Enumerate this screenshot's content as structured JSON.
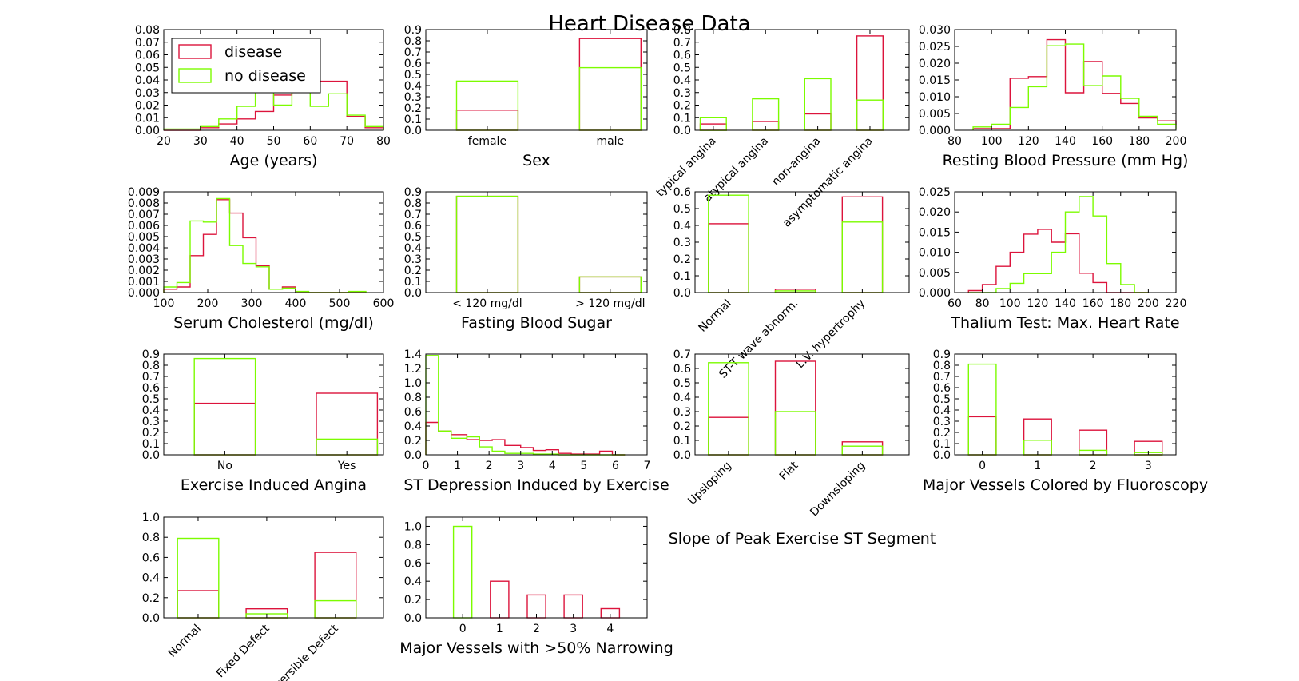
{
  "title": "Heart Disease Data",
  "colors": {
    "disease": "#dc143c",
    "no_disease": "#7cfc00"
  },
  "legend": {
    "entries": [
      "disease",
      "no disease"
    ],
    "placement": "upper-left of first panel"
  },
  "chart_data": [
    {
      "id": "age",
      "type": "histogram",
      "xlabel": "Age (years)",
      "xlim": [
        20,
        80
      ],
      "ylim": [
        0,
        0.08
      ],
      "xticks": [
        "20",
        "30",
        "40",
        "50",
        "60",
        "70",
        "80"
      ],
      "yticks": [
        "0.00",
        "0.01",
        "0.02",
        "0.03",
        "0.04",
        "0.05",
        "0.06",
        "0.07",
        "0.08"
      ],
      "bin_edges": [
        20,
        25,
        30,
        35,
        40,
        45,
        50,
        55,
        60,
        65,
        70,
        75,
        80
      ],
      "series": [
        {
          "name": "disease",
          "values": [
            0,
            0,
            0.002,
            0.005,
            0.009,
            0.015,
            0.028,
            0.03,
            0.039,
            0.039,
            0.011,
            0.002
          ]
        },
        {
          "name": "no disease",
          "values": [
            0.001,
            0.001,
            0.003,
            0.009,
            0.019,
            0.031,
            0.02,
            0.034,
            0.019,
            0.029,
            0.012,
            0.003
          ]
        }
      ]
    },
    {
      "id": "sex",
      "type": "bar",
      "xlabel": "Sex",
      "ylim": [
        0,
        0.9
      ],
      "categories": [
        "female",
        "male"
      ],
      "yticks": [
        "0.0",
        "0.1",
        "0.2",
        "0.3",
        "0.4",
        "0.5",
        "0.6",
        "0.7",
        "0.8",
        "0.9"
      ],
      "series": [
        {
          "name": "disease",
          "values": [
            0.18,
            0.82
          ]
        },
        {
          "name": "no disease",
          "values": [
            0.44,
            0.56
          ]
        }
      ]
    },
    {
      "id": "chest_pain",
      "type": "bar",
      "xlabel": "",
      "ylim": [
        0,
        0.8
      ],
      "categories": [
        "typical angina",
        "atypical angina",
        "non-angina",
        "asymptomatic angina"
      ],
      "yticks": [
        "0.0",
        "0.1",
        "0.2",
        "0.3",
        "0.4",
        "0.5",
        "0.6",
        "0.7",
        "0.8"
      ],
      "series": [
        {
          "name": "disease",
          "values": [
            0.05,
            0.07,
            0.13,
            0.75
          ]
        },
        {
          "name": "no disease",
          "values": [
            0.1,
            0.25,
            0.41,
            0.24
          ]
        }
      ]
    },
    {
      "id": "bp",
      "type": "histogram",
      "xlabel": "Resting Blood Pressure (mm Hg)",
      "xlim": [
        80,
        200
      ],
      "ylim": [
        0,
        0.03
      ],
      "xticks": [
        "80",
        "100",
        "120",
        "140",
        "160",
        "180",
        "200"
      ],
      "yticks": [
        "0.000",
        "0.005",
        "0.010",
        "0.015",
        "0.020",
        "0.025",
        "0.030"
      ],
      "bin_edges": [
        90,
        100,
        110,
        120,
        130,
        140,
        150,
        160,
        170,
        180,
        190,
        200
      ],
      "series": [
        {
          "name": "disease",
          "values": [
            0.0005,
            0.0005,
            0.0155,
            0.016,
            0.027,
            0.0112,
            0.0205,
            0.011,
            0.008,
            0.0037,
            0.0028,
            0.0017
          ]
        },
        {
          "name": "no disease",
          "values": [
            0.001,
            0.0018,
            0.0068,
            0.013,
            0.0252,
            0.0257,
            0.0133,
            0.0162,
            0.0095,
            0.0042,
            0.0018,
            0.0005
          ]
        }
      ]
    },
    {
      "id": "chol",
      "type": "histogram",
      "xlabel": "Serum Cholesterol (mg/dl)",
      "xlim": [
        100,
        600
      ],
      "ylim": [
        0,
        0.009
      ],
      "xticks": [
        "100",
        "200",
        "300",
        "400",
        "500",
        "600"
      ],
      "yticks": [
        "0.000",
        "0.001",
        "0.002",
        "0.003",
        "0.004",
        "0.005",
        "0.006",
        "0.007",
        "0.008",
        "0.009"
      ],
      "bin_edges": [
        100,
        130,
        160,
        190,
        220,
        250,
        280,
        310,
        340,
        370,
        400,
        430,
        460,
        490,
        520,
        560
      ],
      "series": [
        {
          "name": "disease",
          "values": [
            0.0003,
            0.0005,
            0.0033,
            0.0052,
            0.0083,
            0.0071,
            0.0049,
            0.0024,
            0.0003,
            0.0005,
            0,
            0,
            0,
            0,
            0
          ]
        },
        {
          "name": "no disease",
          "values": [
            0.0005,
            0.0009,
            0.0064,
            0.0063,
            0.0084,
            0.0042,
            0.0026,
            0.0023,
            0.0003,
            0.0004,
            0.0001,
            0,
            0,
            0,
            0.0001
          ]
        }
      ]
    },
    {
      "id": "fbs",
      "type": "bar",
      "xlabel": "Fasting Blood Sugar",
      "ylim": [
        0,
        0.9
      ],
      "categories": [
        "< 120 mg/dl",
        "> 120 mg/dl"
      ],
      "yticks": [
        "0.0",
        "0.1",
        "0.2",
        "0.3",
        "0.4",
        "0.5",
        "0.6",
        "0.7",
        "0.8",
        "0.9"
      ],
      "series": [
        {
          "name": "disease",
          "values": [
            0.86,
            0.14
          ]
        },
        {
          "name": "no disease",
          "values": [
            0.86,
            0.14
          ]
        }
      ]
    },
    {
      "id": "ecg",
      "type": "bar",
      "xlabel": "",
      "ylim": [
        0,
        0.6
      ],
      "categories": [
        "Normal",
        "ST-T wave abnorm.",
        "L.V. hypertrophy"
      ],
      "yticks": [
        "0.0",
        "0.1",
        "0.2",
        "0.3",
        "0.4",
        "0.5",
        "0.6"
      ],
      "series": [
        {
          "name": "disease",
          "values": [
            0.41,
            0.02,
            0.57
          ]
        },
        {
          "name": "no disease",
          "values": [
            0.58,
            0.01,
            0.42
          ]
        }
      ]
    },
    {
      "id": "hr",
      "type": "histogram",
      "xlabel": "Thalium Test: Max. Heart Rate",
      "xlim": [
        60,
        220
      ],
      "ylim": [
        0,
        0.025
      ],
      "xticks": [
        "60",
        "80",
        "100",
        "120",
        "140",
        "160",
        "180",
        "200",
        "220"
      ],
      "yticks": [
        "0.000",
        "0.005",
        "0.010",
        "0.015",
        "0.020",
        "0.025"
      ],
      "bin_edges": [
        70,
        80,
        90,
        100,
        110,
        120,
        130,
        140,
        150,
        160,
        170,
        180,
        190,
        200
      ],
      "series": [
        {
          "name": "disease",
          "values": [
            0.0005,
            0.002,
            0.0065,
            0.01,
            0.0145,
            0.0157,
            0.0125,
            0.0146,
            0.0048,
            0.0025,
            0,
            0,
            0
          ]
        },
        {
          "name": "no disease",
          "values": [
            0,
            0,
            0.001,
            0.0023,
            0.0047,
            0.0047,
            0.01,
            0.02,
            0.0238,
            0.019,
            0.0072,
            0.002,
            0
          ]
        }
      ]
    },
    {
      "id": "angina",
      "type": "bar",
      "xlabel": "Exercise Induced Angina",
      "ylim": [
        0,
        0.9
      ],
      "categories": [
        "No",
        "Yes"
      ],
      "yticks": [
        "0.0",
        "0.1",
        "0.2",
        "0.3",
        "0.4",
        "0.5",
        "0.6",
        "0.7",
        "0.8",
        "0.9"
      ],
      "series": [
        {
          "name": "disease",
          "values": [
            0.46,
            0.55
          ]
        },
        {
          "name": "no disease",
          "values": [
            0.86,
            0.14
          ]
        }
      ]
    },
    {
      "id": "st_dep",
      "type": "histogram",
      "xlabel": "ST Depression Induced by Exercise",
      "xlim": [
        0,
        7
      ],
      "ylim": [
        0,
        1.4
      ],
      "xticks": [
        "0",
        "1",
        "2",
        "3",
        "4",
        "5",
        "6",
        "7"
      ],
      "yticks": [
        "0.0",
        "0.2",
        "0.4",
        "0.6",
        "0.8",
        "1.0",
        "1.2",
        "1.4"
      ],
      "bin_edges": [
        0,
        0.4,
        0.8,
        1.3,
        1.7,
        2.1,
        2.5,
        3.0,
        3.4,
        3.8,
        4.2,
        4.6,
        5.1,
        5.5,
        5.9,
        6.3
      ],
      "series": [
        {
          "name": "disease",
          "values": [
            0.45,
            0.33,
            0.28,
            0.21,
            0.2,
            0.21,
            0.13,
            0.1,
            0.06,
            0.07,
            0.02,
            0.01,
            0.01,
            0.05,
            0
          ]
        },
        {
          "name": "no disease",
          "values": [
            1.38,
            0.33,
            0.23,
            0.25,
            0.11,
            0.05,
            0.02,
            0.02,
            0.01,
            0.01,
            0,
            0,
            0,
            0,
            0
          ]
        }
      ]
    },
    {
      "id": "slope",
      "type": "bar",
      "xlabel": "Slope of Peak Exercise ST Segment",
      "ylim": [
        0,
        0.7
      ],
      "categories": [
        "Upsloping",
        "Flat",
        "Downsloping"
      ],
      "yticks": [
        "0.0",
        "0.1",
        "0.2",
        "0.3",
        "0.4",
        "0.5",
        "0.6",
        "0.7"
      ],
      "series": [
        {
          "name": "disease",
          "values": [
            0.26,
            0.65,
            0.09
          ]
        },
        {
          "name": "no disease",
          "values": [
            0.64,
            0.3,
            0.06
          ]
        }
      ]
    },
    {
      "id": "vessels",
      "type": "bar",
      "xlabel": "Major Vessels Colored by Fluoroscopy",
      "ylim": [
        0,
        0.9
      ],
      "categories": [
        "0",
        "1",
        "2",
        "3"
      ],
      "yticks": [
        "0.0",
        "0.1",
        "0.2",
        "0.3",
        "0.4",
        "0.5",
        "0.6",
        "0.7",
        "0.8",
        "0.9"
      ],
      "series": [
        {
          "name": "disease",
          "values": [
            0.34,
            0.32,
            0.22,
            0.12
          ]
        },
        {
          "name": "no disease",
          "values": [
            0.81,
            0.13,
            0.04,
            0.02
          ]
        }
      ]
    },
    {
      "id": "thal",
      "type": "bar",
      "xlabel": "",
      "ylim": [
        0,
        1.0
      ],
      "categories": [
        "Normal",
        "Fixed Defect",
        "Reversible Defect"
      ],
      "yticks": [
        "0.0",
        "0.2",
        "0.4",
        "0.6",
        "0.8",
        "1.0"
      ],
      "series": [
        {
          "name": "disease",
          "values": [
            0.27,
            0.09,
            0.65
          ]
        },
        {
          "name": "no disease",
          "values": [
            0.79,
            0.04,
            0.17
          ]
        }
      ]
    },
    {
      "id": "narrowing",
      "type": "bar",
      "xlabel": "Major Vessels with >50% Narrowing",
      "ylim": [
        0,
        1.1
      ],
      "categories": [
        "0",
        "1",
        "2",
        "3",
        "4"
      ],
      "yticks": [
        "0.0",
        "0.2",
        "0.4",
        "0.6",
        "0.8",
        "1.0"
      ],
      "series": [
        {
          "name": "disease",
          "values": [
            0,
            0.4,
            0.25,
            0.25,
            0.1
          ]
        },
        {
          "name": "no disease",
          "values": [
            1.0,
            0,
            0,
            0,
            0
          ]
        }
      ]
    }
  ]
}
